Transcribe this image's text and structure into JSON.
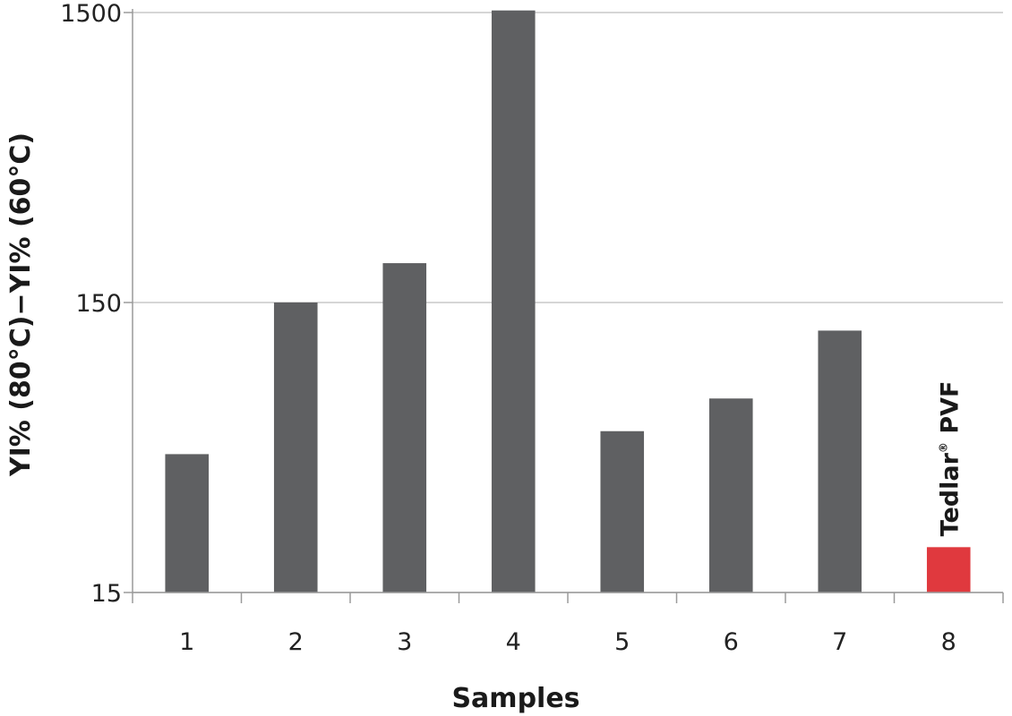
{
  "chart_data": {
    "type": "bar",
    "title": "",
    "xlabel": "Samples",
    "ylabel": "YI% (80°C)−YI% (60°C)",
    "y_scale": "log",
    "ylim": [
      15,
      1500
    ],
    "y_ticks": [
      15,
      150,
      1500
    ],
    "grid": true,
    "categories": [
      "1",
      "2",
      "3",
      "4",
      "5",
      "6",
      "7",
      "8"
    ],
    "values": [
      45,
      150,
      205,
      1525,
      54,
      70,
      120,
      21.5
    ],
    "bar_colors": [
      "#5f6062",
      "#5f6062",
      "#5f6062",
      "#5f6062",
      "#5f6062",
      "#5f6062",
      "#5f6062",
      "#e0393e"
    ],
    "annotation": {
      "category": "8",
      "text": "Tedlar",
      "superscript": "®",
      "suffix": " PVF"
    }
  }
}
